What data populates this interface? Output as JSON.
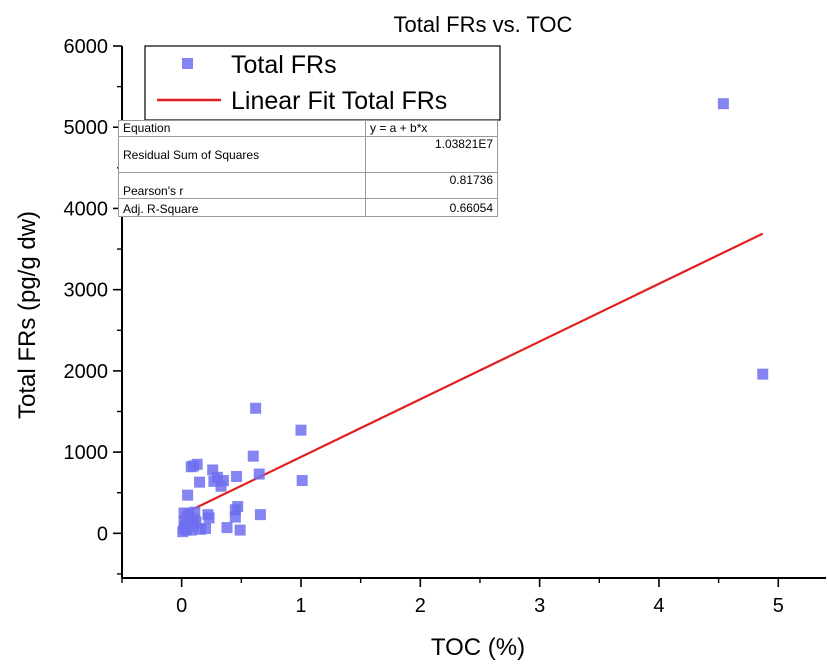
{
  "chart_data": {
    "type": "scatter",
    "title": "Total FRs vs. TOC",
    "xlabel": "TOC (%)",
    "ylabel": "Total FRs (pg/g dw)",
    "xlim": [
      -0.5,
      5.4
    ],
    "ylim": [
      -550,
      6000
    ],
    "xticks": [
      0,
      1,
      2,
      3,
      4,
      5
    ],
    "yticks": [
      0,
      1000,
      2000,
      3000,
      4000,
      5000,
      6000
    ],
    "grid": false,
    "legend_position": "top-left",
    "series": [
      {
        "name": "Total FRs",
        "kind": "scatter",
        "marker": "square",
        "color": "#6f6ff0",
        "points": [
          [
            0.01,
            20
          ],
          [
            0.02,
            60
          ],
          [
            0.02,
            150
          ],
          [
            0.02,
            250
          ],
          [
            0.03,
            100
          ],
          [
            0.04,
            40
          ],
          [
            0.05,
            190
          ],
          [
            0.05,
            470
          ],
          [
            0.06,
            240
          ],
          [
            0.07,
            120
          ],
          [
            0.08,
            40
          ],
          [
            0.08,
            820
          ],
          [
            0.1,
            90
          ],
          [
            0.1,
            170
          ],
          [
            0.1,
            830
          ],
          [
            0.11,
            260
          ],
          [
            0.12,
            140
          ],
          [
            0.13,
            850
          ],
          [
            0.15,
            630
          ],
          [
            0.16,
            50
          ],
          [
            0.2,
            60
          ],
          [
            0.22,
            230
          ],
          [
            0.23,
            190
          ],
          [
            0.26,
            780
          ],
          [
            0.27,
            640
          ],
          [
            0.3,
            690
          ],
          [
            0.33,
            580
          ],
          [
            0.35,
            650
          ],
          [
            0.38,
            70
          ],
          [
            0.45,
            200
          ],
          [
            0.45,
            290
          ],
          [
            0.46,
            700
          ],
          [
            0.47,
            330
          ],
          [
            0.49,
            40
          ],
          [
            0.6,
            950
          ],
          [
            0.62,
            1540
          ],
          [
            0.65,
            730
          ],
          [
            0.66,
            230
          ],
          [
            1.0,
            1270
          ],
          [
            1.01,
            650
          ],
          [
            4.54,
            5290
          ],
          [
            4.87,
            1960
          ]
        ]
      },
      {
        "name": "Linear Fit Total FRs",
        "kind": "line",
        "color": "#e02020",
        "points": [
          [
            0.0,
            230
          ],
          [
            4.87,
            3690
          ]
        ]
      }
    ],
    "fit_table": {
      "rows": [
        {
          "label": "Equation",
          "value": "y = a + b*x"
        },
        {
          "label": "Residual Sum of Squares",
          "value": "1.03821E7"
        },
        {
          "label": "Pearson's r",
          "value": "0.81736"
        },
        {
          "label": "Adj. R-Square",
          "value": "0.66054"
        }
      ]
    }
  }
}
